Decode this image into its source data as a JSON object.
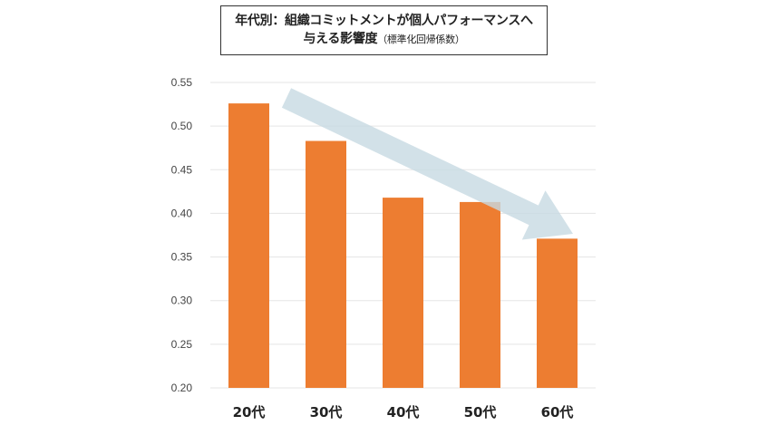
{
  "title": {
    "line1": "年代別：組織コミットメントが個人パフォーマンスへ",
    "line2": "与える影響度",
    "line2_paren": "（標準化回帰係数）"
  },
  "colors": {
    "bar": "#ED7D31",
    "grid": "#E5E5E5",
    "arrow": "#C7D9E2"
  },
  "chart_data": {
    "type": "bar",
    "categories": [
      "20代",
      "30代",
      "40代",
      "50代",
      "60代"
    ],
    "values": [
      0.526,
      0.483,
      0.418,
      0.413,
      0.371
    ],
    "title": "年代別：組織コミットメントが個人パフォーマンスへ与える影響度（標準化回帰係数）",
    "xlabel": "",
    "ylabel": "",
    "ylim": [
      0.2,
      0.55
    ],
    "yticks": [
      "0.55",
      "0.50",
      "0.45",
      "0.40",
      "0.35",
      "0.30",
      "0.25",
      "0.20"
    ],
    "grid": true,
    "legend": "none",
    "annotation": "downward-trend-arrow"
  }
}
